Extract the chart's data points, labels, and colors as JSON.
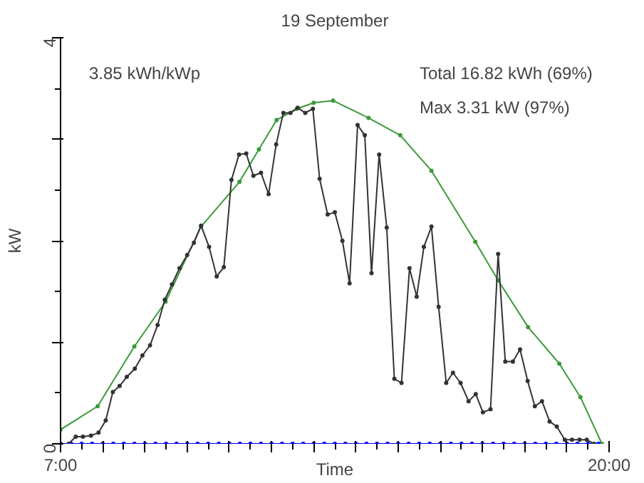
{
  "chart_data": {
    "type": "line",
    "title": "19 September",
    "xlabel": "Time",
    "ylabel": "kW",
    "annotations": [
      "3.85 kWh/kWp",
      "Total 16.82 kWh (69%)",
      "Max 3.31 kW (97%)"
    ],
    "xlim": [
      7,
      20
    ],
    "xticks": [
      {
        "value": 7,
        "label": "7:00"
      },
      {
        "value": 8,
        "label": null
      },
      {
        "value": 9,
        "label": null
      },
      {
        "value": 10,
        "label": null
      },
      {
        "value": 11,
        "label": null
      },
      {
        "value": 12,
        "label": null
      },
      {
        "value": 13,
        "label": null
      },
      {
        "value": 14,
        "label": null
      },
      {
        "value": 15,
        "label": null
      },
      {
        "value": 16,
        "label": null
      },
      {
        "value": 17,
        "label": null
      },
      {
        "value": 18,
        "label": null
      },
      {
        "value": 19,
        "label": null
      },
      {
        "value": 20,
        "label": "20:00"
      }
    ],
    "ylim": [
      0,
      4
    ],
    "yticks": [
      0,
      {
        "value": 1,
        "label": null
      },
      {
        "value": 2,
        "label": null
      },
      {
        "value": 3,
        "label": null
      },
      4
    ],
    "grid": false,
    "marker": "circle",
    "line_style": "solid",
    "series": [
      {
        "color": "#3a9a3a",
        "x": [
          7.0,
          7.88,
          8.75,
          9.49,
          10.33,
          11.24,
          11.7,
          12.12,
          12.6,
          13.0,
          13.46,
          14.3,
          15.05,
          15.79,
          16.83,
          17.37,
          18.08,
          18.82,
          19.32,
          19.83
        ],
        "values": [
          0.14,
          0.37,
          0.96,
          1.4,
          2.14,
          2.58,
          2.9,
          3.19,
          3.3,
          3.36,
          3.38,
          3.21,
          3.04,
          2.69,
          1.99,
          1.61,
          1.15,
          0.79,
          0.46,
          0
        ]
      },
      {
        "color": "#0000ff",
        "x": [
          7.0,
          7.25,
          7.5,
          7.75,
          8.0,
          8.25,
          8.5,
          8.75,
          9.0,
          9.25,
          9.5,
          9.75,
          10.0,
          10.25,
          10.5,
          10.75,
          11.0,
          11.25,
          11.5,
          11.75,
          12.0,
          12.25,
          12.5,
          12.75,
          13.0,
          13.25,
          13.5,
          13.75,
          14.0,
          14.25,
          14.5,
          14.75,
          15.0,
          15.25,
          15.5,
          15.75,
          16.0,
          16.25,
          16.5,
          16.75,
          17.0,
          17.25,
          17.5,
          17.75,
          18.0,
          18.25,
          18.5,
          18.75,
          19.0,
          19.25,
          19.5,
          19.75
        ],
        "values": [
          0,
          0,
          0,
          0,
          0,
          0,
          0,
          0,
          0,
          0,
          0,
          0,
          0,
          0,
          0,
          0,
          0,
          0,
          0,
          0,
          0,
          0,
          0,
          0,
          0,
          0,
          0,
          0,
          0,
          0,
          0,
          0,
          0,
          0,
          0,
          0,
          0,
          0,
          0,
          0,
          0,
          0,
          0,
          0,
          0,
          0,
          0,
          0,
          0,
          0,
          0,
          0
        ]
      },
      {
        "color": "#333333",
        "x": [
          7.19,
          7.36,
          7.53,
          7.72,
          7.9,
          8.07,
          8.24,
          8.4,
          8.57,
          8.76,
          8.94,
          9.12,
          9.3,
          9.47,
          9.64,
          9.82,
          10.0,
          10.16,
          10.33,
          10.52,
          10.7,
          10.87,
          11.05,
          11.23,
          11.4,
          11.57,
          11.75,
          11.93,
          12.11,
          12.28,
          12.45,
          12.62,
          12.8,
          12.98,
          13.14,
          13.33,
          13.5,
          13.68,
          13.85,
          14.04,
          14.21,
          14.37,
          14.55,
          14.73,
          14.91,
          15.08,
          15.27,
          15.44,
          15.61,
          15.79,
          15.96,
          16.14,
          16.3,
          16.48,
          16.67,
          16.84,
          17.01,
          17.19,
          17.37,
          17.54,
          17.72,
          17.89,
          18.07,
          18.24,
          18.41,
          18.59,
          18.76,
          18.95,
          19.12,
          19.3,
          19.47,
          19.65
        ],
        "values": [
          0,
          0.07,
          0.07,
          0.08,
          0.11,
          0.23,
          0.51,
          0.57,
          0.66,
          0.74,
          0.87,
          0.97,
          1.17,
          1.42,
          1.57,
          1.73,
          1.86,
          1.98,
          2.15,
          1.94,
          1.65,
          1.74,
          2.6,
          2.85,
          2.86,
          2.64,
          2.67,
          2.46,
          2.95,
          3.26,
          3.26,
          3.31,
          3.26,
          3.3,
          2.61,
          2.26,
          2.28,
          2.0,
          1.58,
          3.14,
          3.04,
          1.68,
          2.85,
          2.13,
          0.64,
          0.6,
          1.73,
          1.45,
          1.94,
          2.14,
          1.35,
          0.6,
          0.7,
          0.6,
          0.42,
          0.49,
          0.31,
          0.34,
          1.87,
          0.81,
          0.81,
          0.93,
          0.62,
          0.37,
          0.42,
          0.22,
          0.17,
          0.04,
          0.04,
          0.04,
          0.04,
          0
        ]
      }
    ]
  }
}
